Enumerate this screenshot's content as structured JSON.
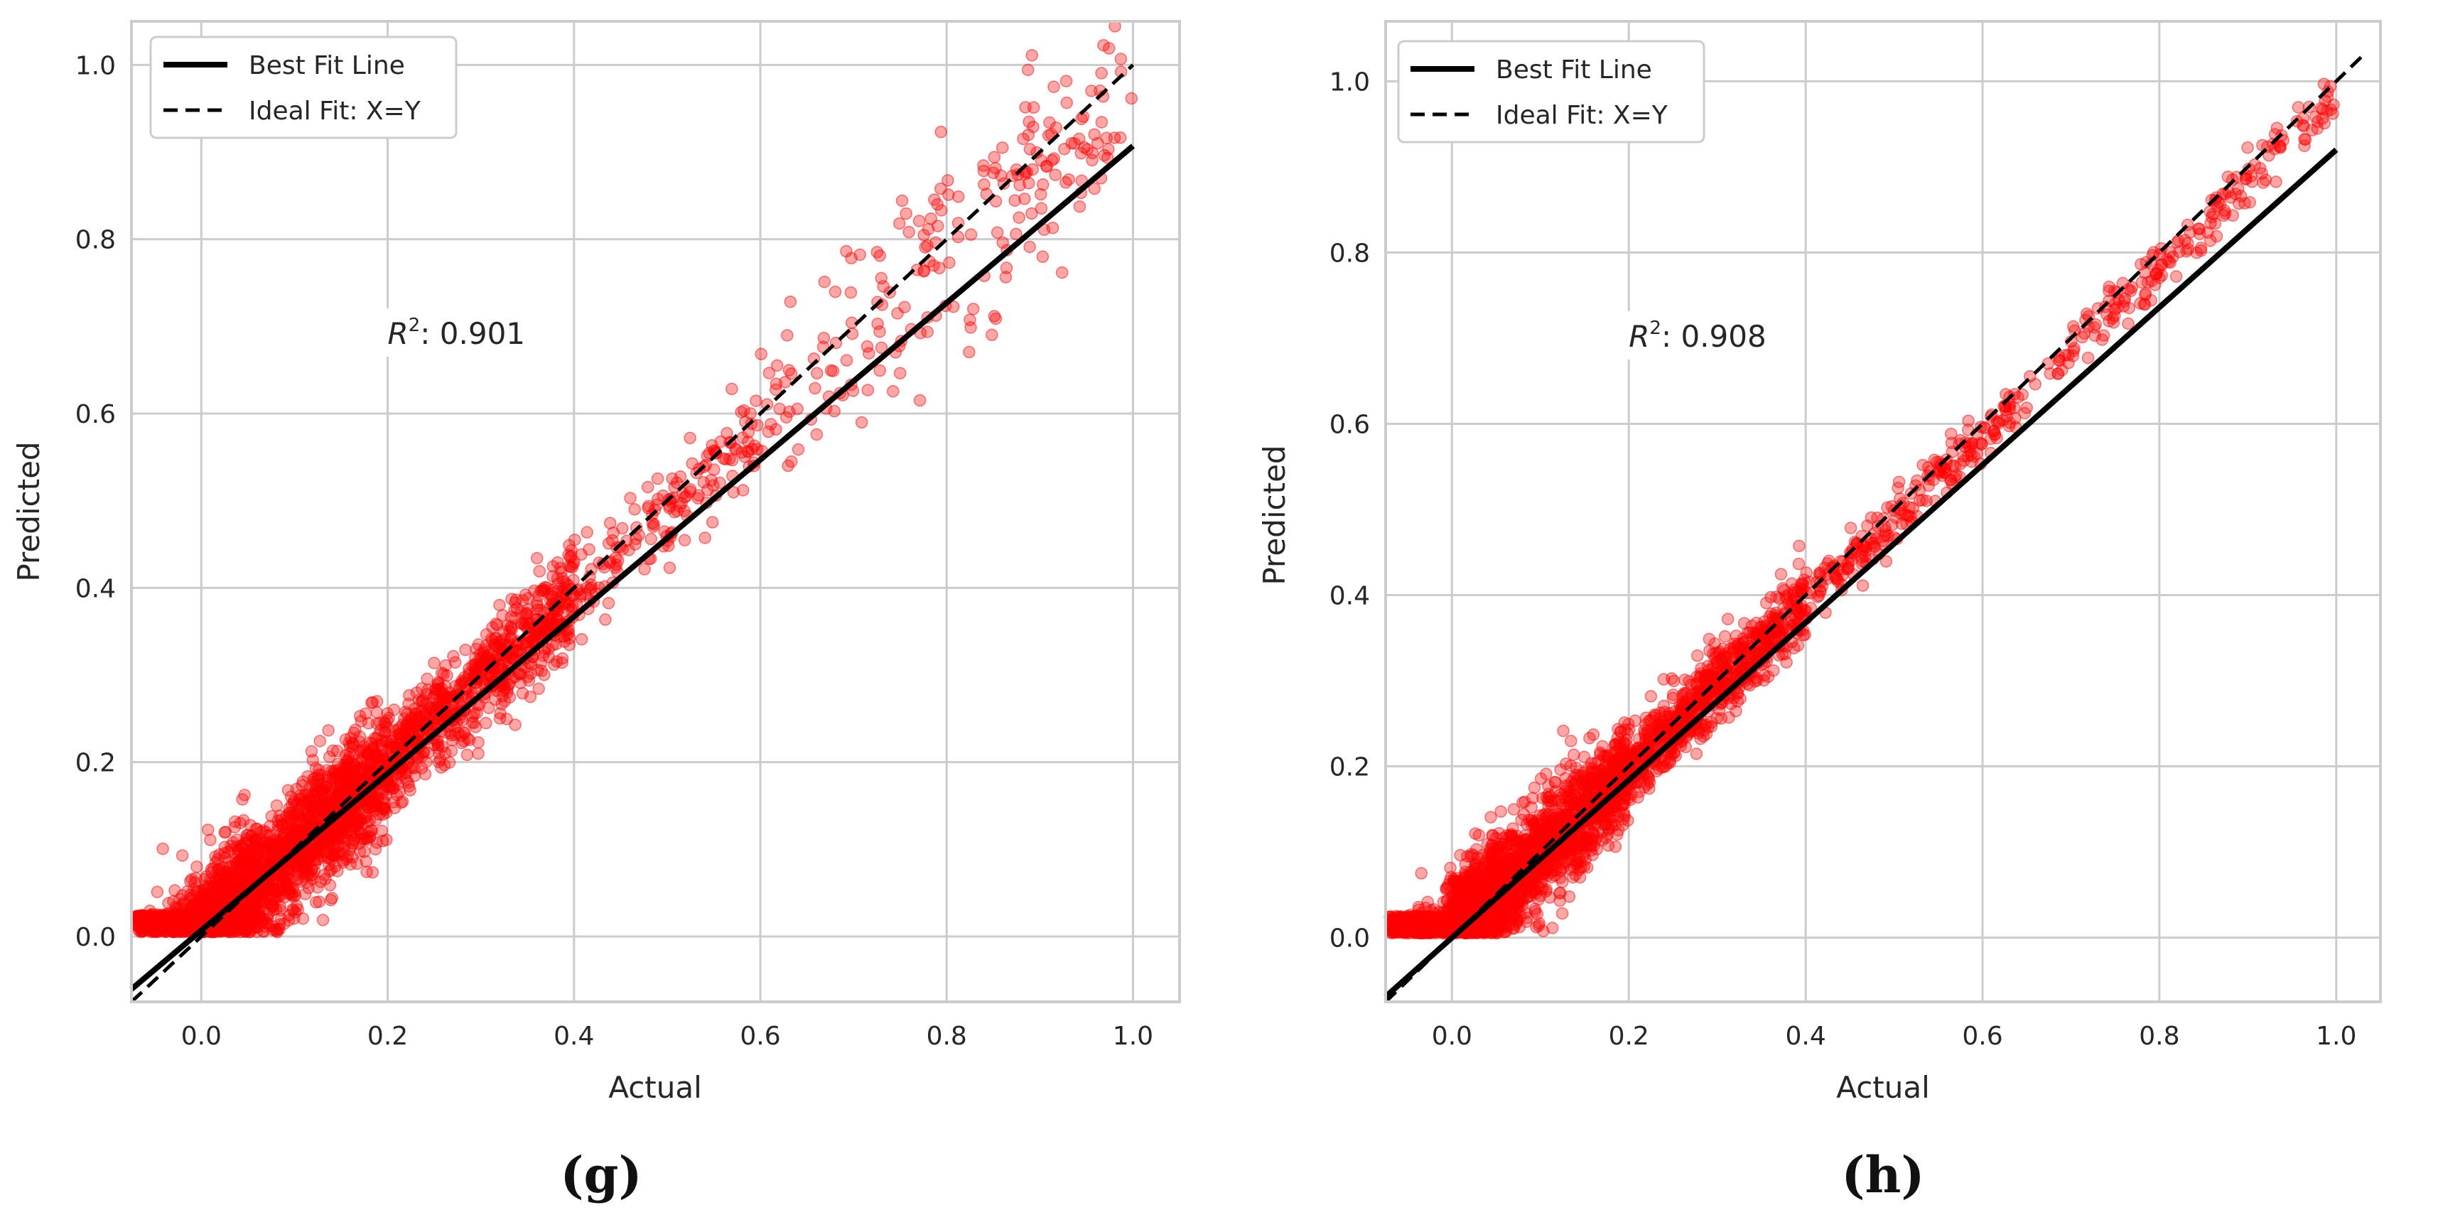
{
  "colors": {
    "points": "#ff0000",
    "best_fit": "#000000",
    "ideal_fit": "#000000",
    "grid": "#cccccc",
    "spine": "#cccccc",
    "text": "#262626"
  },
  "chart_data": [
    {
      "type": "scatter",
      "panel_label": "(g)",
      "xlabel": "Actual",
      "ylabel": "Predicted",
      "xlim": [
        -0.075,
        1.05
      ],
      "ylim": [
        -0.075,
        1.05
      ],
      "xticks": [
        0.0,
        0.2,
        0.4,
        0.6,
        0.8,
        1.0
      ],
      "yticks": [
        0.0,
        0.2,
        0.4,
        0.6,
        0.8,
        1.0
      ],
      "tick_labels": [
        "0.0",
        "0.2",
        "0.4",
        "0.6",
        "0.8",
        "1.0"
      ],
      "grid": true,
      "legend_position": "upper-left",
      "legend": [
        "Best Fit Line",
        "Ideal Fit: X=Y"
      ],
      "annotation": {
        "prefix": "R",
        "sup": "2",
        "text": ": 0.901",
        "x": 0.2,
        "y": 0.68
      },
      "r2": 0.901,
      "best_fit": {
        "slope": 0.9,
        "intercept": 0.007,
        "x_range": [
          -0.075,
          1.0
        ]
      },
      "ideal_fit": {
        "x_range": [
          -0.075,
          1.0
        ]
      },
      "point_clusters": [
        {
          "x_range": [
            -0.07,
            0.06
          ],
          "width": 0.09,
          "count": 900
        },
        {
          "x_range": [
            0.0,
            0.2
          ],
          "width": 0.08,
          "count": 1500
        },
        {
          "x_range": [
            0.2,
            0.4
          ],
          "width": 0.06,
          "count": 700
        },
        {
          "x_range": [
            0.4,
            0.6
          ],
          "width": 0.06,
          "count": 160
        },
        {
          "x_range": [
            0.6,
            1.0
          ],
          "width": 0.14,
          "count": 220
        }
      ]
    },
    {
      "type": "scatter",
      "panel_label": "(h)",
      "xlabel": "Actual",
      "ylabel": "Predicted",
      "xlim": [
        -0.075,
        1.05
      ],
      "ylim": [
        -0.075,
        1.07
      ],
      "xticks": [
        0.0,
        0.2,
        0.4,
        0.6,
        0.8,
        1.0
      ],
      "yticks": [
        0.0,
        0.2,
        0.4,
        0.6,
        0.8,
        1.0
      ],
      "tick_labels": [
        "0.0",
        "0.2",
        "0.4",
        "0.6",
        "0.8",
        "1.0"
      ],
      "grid": true,
      "legend_position": "upper-left",
      "legend": [
        "Best Fit Line",
        "Ideal Fit: X=Y"
      ],
      "annotation": {
        "prefix": "R",
        "sup": "2",
        "text": ": 0.908",
        "x": 0.2,
        "y": 0.69
      },
      "r2": 0.908,
      "best_fit": {
        "slope": 0.92,
        "intercept": 0.0,
        "x_range": [
          -0.075,
          1.0
        ]
      },
      "ideal_fit": {
        "x_range": [
          -0.075,
          1.03
        ]
      },
      "point_clusters": [
        {
          "x_range": [
            -0.07,
            0.06
          ],
          "width": 0.08,
          "count": 900
        },
        {
          "x_range": [
            0.0,
            0.2
          ],
          "width": 0.07,
          "count": 1500
        },
        {
          "x_range": [
            0.2,
            0.4
          ],
          "width": 0.045,
          "count": 700
        },
        {
          "x_range": [
            0.4,
            0.6
          ],
          "width": 0.03,
          "count": 180
        },
        {
          "x_range": [
            0.6,
            1.0
          ],
          "width": 0.025,
          "count": 220
        }
      ]
    }
  ]
}
